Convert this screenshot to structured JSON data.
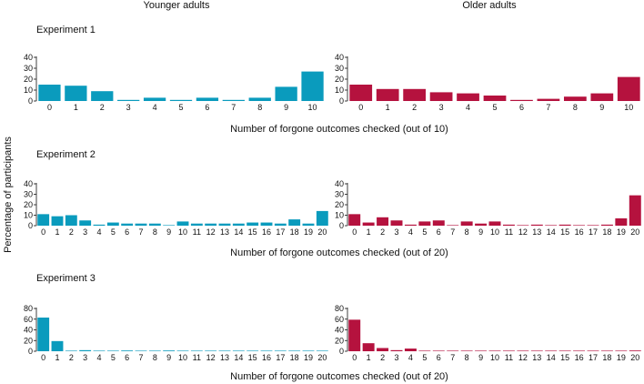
{
  "column_titles": {
    "young": "Younger adults",
    "old": "Older adults"
  },
  "y_axis_label": "Percentage of participants",
  "colors": {
    "young": "#0a9bbd",
    "old": "#b5123e"
  },
  "experiments": [
    {
      "title": "Experiment 1",
      "xlabel": "Number of forgone outcomes checked (out of 10)"
    },
    {
      "title": "Experiment 2",
      "xlabel": "Number of forgone outcomes checked (out of 20)"
    },
    {
      "title": "Experiment 3",
      "xlabel": "Number of forgone outcomes checked (out of 20)"
    }
  ],
  "chart_data": [
    {
      "type": "bar",
      "id": "exp1-young",
      "experiment": "Experiment 1",
      "group": "Younger adults",
      "categories": [
        "0",
        "1",
        "2",
        "3",
        "4",
        "5",
        "6",
        "7",
        "8",
        "9",
        "10"
      ],
      "values": [
        15,
        14,
        9,
        1,
        3,
        1,
        3,
        1,
        3,
        13,
        27
      ],
      "yticks": [
        0,
        10,
        20,
        30,
        40
      ],
      "ylim": [
        0,
        40
      ]
    },
    {
      "type": "bar",
      "id": "exp1-old",
      "experiment": "Experiment 1",
      "group": "Older adults",
      "categories": [
        "0",
        "1",
        "2",
        "3",
        "4",
        "5",
        "6",
        "7",
        "8",
        "9",
        "10"
      ],
      "values": [
        15,
        11,
        11,
        8,
        7,
        5,
        1,
        2,
        4,
        7,
        22
      ],
      "yticks": [
        0,
        10,
        20,
        30,
        40
      ],
      "ylim": [
        0,
        40
      ]
    },
    {
      "type": "bar",
      "id": "exp2-young",
      "experiment": "Experiment 2",
      "group": "Younger adults",
      "categories": [
        "0",
        "1",
        "2",
        "3",
        "4",
        "5",
        "6",
        "7",
        "8",
        "9",
        "10",
        "11",
        "12",
        "13",
        "14",
        "15",
        "16",
        "17",
        "18",
        "19",
        "20"
      ],
      "values": [
        11,
        9,
        10,
        5,
        1,
        3,
        2,
        2,
        2,
        0,
        4,
        2,
        2,
        2,
        2,
        3,
        3,
        2,
        6,
        2,
        14
      ],
      "yticks": [
        0,
        10,
        20,
        30,
        40
      ],
      "ylim": [
        0,
        40
      ]
    },
    {
      "type": "bar",
      "id": "exp2-old",
      "experiment": "Experiment 2",
      "group": "Older adults",
      "categories": [
        "0",
        "1",
        "2",
        "3",
        "4",
        "5",
        "6",
        "7",
        "8",
        "9",
        "10",
        "11",
        "12",
        "13",
        "14",
        "15",
        "16",
        "17",
        "18",
        "19",
        "20"
      ],
      "values": [
        11,
        3,
        8,
        5,
        1,
        4,
        5,
        0,
        4,
        2,
        4,
        1,
        0,
        1,
        0,
        1,
        0,
        0,
        1,
        7,
        29
      ],
      "yticks": [
        0,
        10,
        20,
        30,
        40
      ],
      "ylim": [
        0,
        40
      ]
    },
    {
      "type": "bar",
      "id": "exp3-young",
      "experiment": "Experiment 3",
      "group": "Younger adults",
      "categories": [
        "0",
        "1",
        "2",
        "3",
        "4",
        "5",
        "6",
        "7",
        "8",
        "9",
        "10",
        "11",
        "12",
        "13",
        "14",
        "15",
        "16",
        "17",
        "18",
        "19",
        "20"
      ],
      "values": [
        63,
        19,
        0,
        2,
        0,
        0,
        1,
        0,
        0,
        1,
        0,
        0,
        0,
        0,
        0,
        0,
        0,
        0,
        0,
        0,
        0
      ],
      "yticks": [
        0,
        20,
        40,
        60,
        80
      ],
      "ylim": [
        0,
        80
      ]
    },
    {
      "type": "bar",
      "id": "exp3-old",
      "experiment": "Experiment 3",
      "group": "Older adults",
      "categories": [
        "0",
        "1",
        "2",
        "3",
        "4",
        "5",
        "6",
        "7",
        "8",
        "9",
        "10",
        "11",
        "12",
        "13",
        "14",
        "15",
        "16",
        "17",
        "18",
        "19",
        "20"
      ],
      "values": [
        59,
        15,
        6,
        2,
        5,
        0,
        0,
        0,
        0,
        0,
        0,
        0,
        0,
        0,
        0,
        0,
        0,
        0,
        0,
        0,
        1
      ],
      "yticks": [
        0,
        20,
        40,
        60,
        80
      ],
      "ylim": [
        0,
        80
      ]
    }
  ]
}
